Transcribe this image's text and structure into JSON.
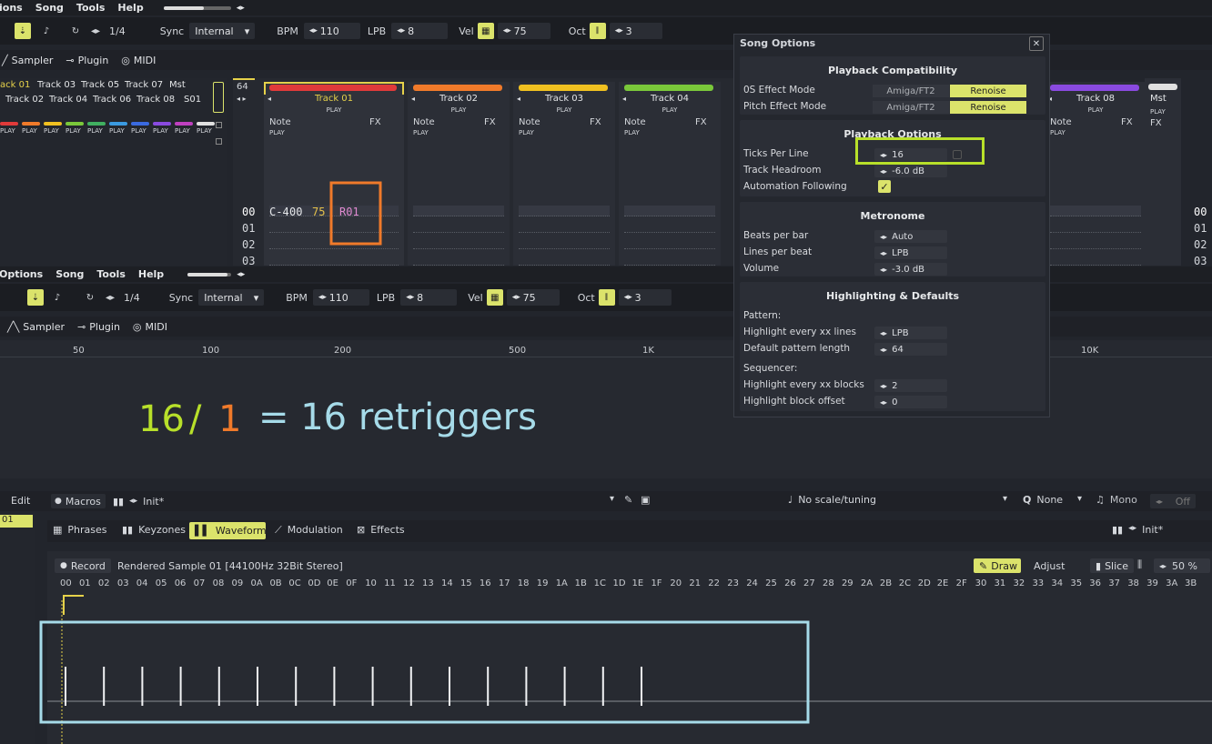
{
  "top_menu": {
    "items": [
      "ions",
      "Song",
      "Tools",
      "Help"
    ]
  },
  "top_toolbar": {
    "line_step": "1/4",
    "sync_label": "Sync",
    "sync_value": "Internal",
    "bpm_label": "BPM",
    "bpm_value": "110",
    "lpb_label": "LPB",
    "lpb_value": "8",
    "vel_label": "Vel",
    "vel_value": "75",
    "oct_label": "Oct",
    "oct_value": "3"
  },
  "top_tabs": {
    "sampler": "Sampler",
    "plugin": "Plugin",
    "midi": "MIDI"
  },
  "track_grid": {
    "row1": [
      "ack 01",
      "Track 03",
      "Track 05",
      "Track 07",
      "Mst"
    ],
    "row2": [
      "Track 02",
      "Track 04",
      "Track 06",
      "Track 08",
      "S01"
    ],
    "play_label": "PLAY"
  },
  "pattern_editor": {
    "pattern_length": "64",
    "tracks": [
      "Track 01",
      "Track 02",
      "Track 03",
      "Track 04",
      "Track 08",
      "Mst"
    ],
    "track_colors": [
      "#e03a3a",
      "#f07a2a",
      "#f0c020",
      "#7ac83a",
      "#8a4ae0",
      "#e0e0e0"
    ],
    "col_note": "Note",
    "col_fx": "FX",
    "play_label": "PLAY",
    "line_numbers": [
      "00",
      "01",
      "02",
      "03"
    ],
    "first_note": "C-4",
    "first_inst": "00",
    "first_vol": "75",
    "first_fx": "R01"
  },
  "mid_menu": {
    "items": [
      "Options",
      "Song",
      "Tools",
      "Help"
    ]
  },
  "mid_tabs": {
    "sampler": "Sampler",
    "plugin": "Plugin",
    "midi": "MIDI"
  },
  "freq_ruler": [
    "50",
    "100",
    "200",
    "500",
    "1K",
    "10K"
  ],
  "annotation": {
    "ticks": "16",
    "slash": "/",
    "retrig": "1",
    "result": "= 16 retriggers"
  },
  "song_options": {
    "title": "Song Options",
    "playback_compat": {
      "header": "Playback Compatibility",
      "effect_mode_label": "0S Effect Mode",
      "pitch_mode_label": "Pitch Effect Mode",
      "option_a": "Amiga/FT2",
      "option_b": "Renoise"
    },
    "playback_options": {
      "header": "Playback Options",
      "ticks_label": "Ticks Per Line",
      "ticks_value": "16",
      "headroom_label": "Track Headroom",
      "headroom_value": "-6.0 dB",
      "automation_label": "Automation Following"
    },
    "metronome": {
      "header": "Metronome",
      "beats_label": "Beats per bar",
      "beats_value": "Auto",
      "lines_label": "Lines per beat",
      "lines_value": "LPB",
      "volume_label": "Volume",
      "volume_value": "-3.0 dB"
    },
    "highlighting": {
      "header": "Highlighting & Defaults",
      "pattern_label": "Pattern:",
      "highlight_lines_label": "Highlight every xx lines",
      "highlight_lines_value": "LPB",
      "default_length_label": "Default pattern length",
      "default_length_value": "64",
      "sequencer_label": "Sequencer:",
      "highlight_blocks_label": "Highlight every xx blocks",
      "highlight_blocks_value": "2",
      "block_offset_label": "Highlight block offset",
      "block_offset_value": "0"
    }
  },
  "instrument_bar": {
    "edit": "Edit",
    "slot": "01",
    "macros": "Macros",
    "preset": "Init*",
    "scale": "No scale/tuning",
    "key": "None",
    "mono": "Mono",
    "off": "Off",
    "preset_right": "Init*"
  },
  "inst_tabs": {
    "phrases": "Phrases",
    "keyzones": "Keyzones",
    "waveform": "Waveform",
    "modulation": "Modulation",
    "effects": "Effects"
  },
  "waveform": {
    "record": "Record",
    "sample_name": "Rendered Sample 01 [44100Hz 32Bit Stereo]",
    "draw": "Draw",
    "adjust": "Adjust",
    "slice": "Slice",
    "zoom": "50 %",
    "ruler": [
      "00",
      "01",
      "02",
      "03",
      "04",
      "05",
      "06",
      "07",
      "08",
      "09",
      "0A",
      "0B",
      "0C",
      "0D",
      "0E",
      "0F",
      "10",
      "11",
      "12",
      "13",
      "14",
      "15",
      "16",
      "17",
      "18",
      "19",
      "1A",
      "1B",
      "1C",
      "1D",
      "1E",
      "1F",
      "20",
      "21",
      "22",
      "23",
      "24",
      "25",
      "26",
      "27",
      "28",
      "29",
      "2A",
      "2B",
      "2C",
      "2D",
      "2E",
      "2F",
      "30",
      "31",
      "32",
      "33",
      "34",
      "35",
      "36",
      "37",
      "38",
      "39",
      "3A",
      "3B"
    ],
    "spike_count": 16
  },
  "colors": {
    "accent_yellow": "#dbe36b",
    "highlight_green": "#b8e02a",
    "annotation_orange": "#f07a2a",
    "annotation_blue": "#a6dbe9"
  }
}
